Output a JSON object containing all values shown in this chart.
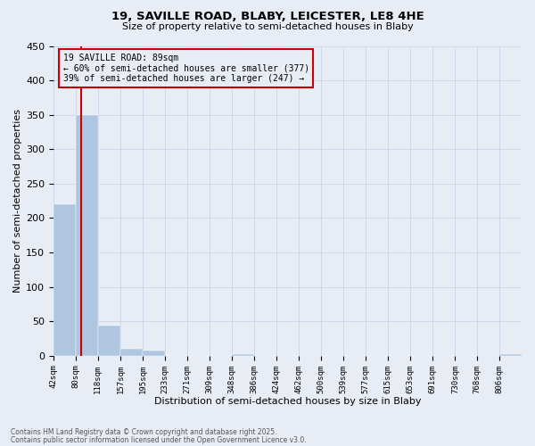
{
  "title1": "19, SAVILLE ROAD, BLABY, LEICESTER, LE8 4HE",
  "title2": "Size of property relative to semi-detached houses in Blaby",
  "xlabel": "Distribution of semi-detached houses by size in Blaby",
  "ylabel": "Number of semi-detached properties",
  "footnote1": "Contains HM Land Registry data © Crown copyright and database right 2025.",
  "footnote2": "Contains public sector information licensed under the Open Government Licence v3.0.",
  "annotation_line1": "19 SAVILLE ROAD: 89sqm",
  "annotation_line2": "← 60% of semi-detached houses are smaller (377)",
  "annotation_line3": "39% of semi-detached houses are larger (247) →",
  "property_size": 89,
  "categories": [
    "42sqm",
    "80sqm",
    "118sqm",
    "157sqm",
    "195sqm",
    "233sqm",
    "271sqm",
    "309sqm",
    "348sqm",
    "386sqm",
    "424sqm",
    "462sqm",
    "500sqm",
    "539sqm",
    "577sqm",
    "615sqm",
    "653sqm",
    "691sqm",
    "730sqm",
    "768sqm",
    "806sqm"
  ],
  "bin_edges": [
    42,
    80,
    118,
    157,
    195,
    233,
    271,
    309,
    348,
    386,
    424,
    462,
    500,
    539,
    577,
    615,
    653,
    691,
    730,
    768,
    806
  ],
  "values": [
    220,
    350,
    44,
    10,
    7,
    0,
    0,
    0,
    2,
    0,
    0,
    0,
    0,
    0,
    0,
    0,
    0,
    0,
    0,
    0,
    2
  ],
  "bar_color": "#aec6e0",
  "grid_color": "#cdd8ea",
  "bg_color": "#e8edf5",
  "vline_color": "#cc0000",
  "vline_x": 89,
  "ylim": [
    0,
    450
  ],
  "yticks": [
    0,
    50,
    100,
    150,
    200,
    250,
    300,
    350,
    400,
    450
  ],
  "box_color": "#cc0000"
}
